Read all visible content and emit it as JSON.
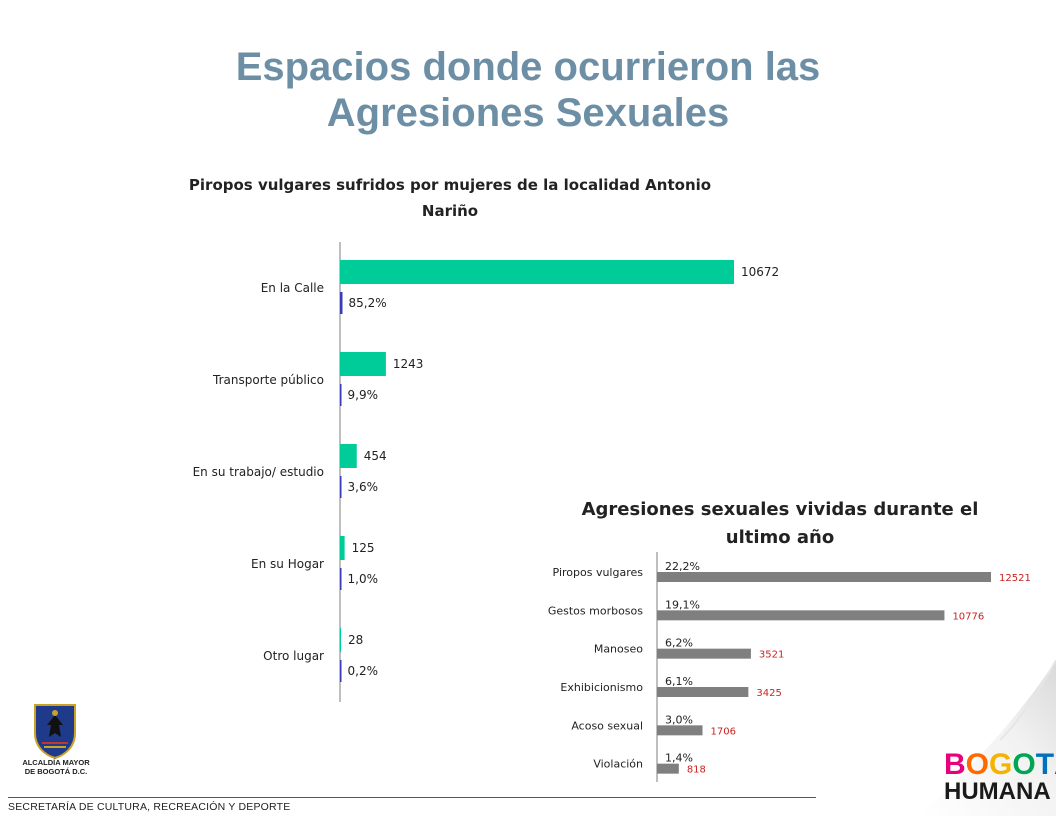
{
  "slide": {
    "title_line1": "Espacios donde ocurrieron las",
    "title_line2": "Agresiones Sexuales",
    "footer": "SECRETARÍA DE CULTURA, RECREACIÓN Y DEPORTE",
    "logo_left_line1": "ALCALDÍA MAYOR",
    "logo_left_line2": "DE BOGOTÁ D.C.",
    "logo_right_top": "BOGOTÁ",
    "logo_right_bottom": "HUMANA",
    "colors": {
      "title": "#6d8fa6",
      "bar_green": "#00cc99",
      "bar_blue": "#3b3bb5",
      "bar_gray": "#7f7f7f",
      "label_red": "#cc2222"
    }
  },
  "chart_data": [
    {
      "type": "bar",
      "orientation": "horizontal",
      "title_line1": "Piropos vulgares sufridos por mujeres de la localidad Antonio",
      "title_line2": "Nariño",
      "categories": [
        "En la Calle",
        "Transporte público",
        "En su trabajo/ estudio",
        "En su Hogar",
        "Otro lugar"
      ],
      "series": [
        {
          "values": [
            10672,
            1243,
            454,
            125,
            28
          ],
          "labels": [
            "10672",
            "1243",
            "454",
            "125",
            "28"
          ]
        },
        {
          "values": [
            85.2,
            9.9,
            3.6,
            1.0,
            0.2
          ],
          "labels": [
            "85,2%",
            "9,9%",
            "3,6%",
            "1,0%",
            "0,2%"
          ]
        }
      ],
      "grid": false,
      "legend": "none"
    },
    {
      "type": "bar",
      "orientation": "horizontal",
      "title_line1": "Agresiones sexuales vividas durante el",
      "title_line2": "ultimo año",
      "categories": [
        "Piropos vulgares",
        "Gestos morbosos",
        "Manoseo",
        "Exhibicionismo",
        "Acoso sexual",
        "Violación"
      ],
      "series": [
        {
          "values": [
            12521,
            10776,
            3521,
            3425,
            1706,
            818
          ],
          "labels": [
            "12521",
            "10776",
            "3521",
            "3425",
            "1706",
            "818"
          ]
        }
      ],
      "percent_labels": [
        "22,2%",
        "19,1%",
        "6,2%",
        "6,1%",
        "3,0%",
        "1,4%"
      ],
      "grid": false,
      "legend": "none"
    }
  ]
}
